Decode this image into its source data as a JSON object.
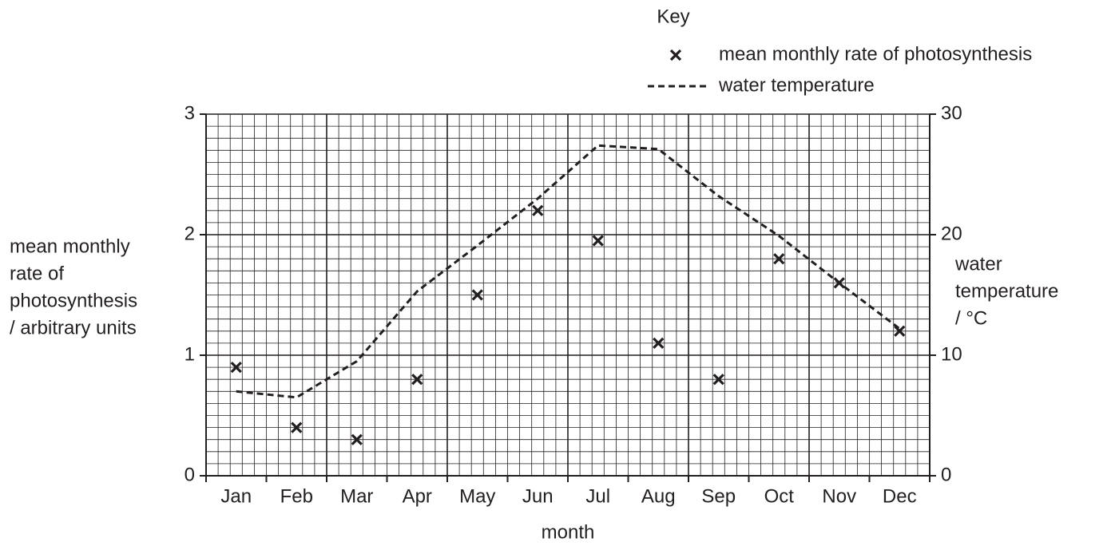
{
  "chart_data": {
    "type": "scatter",
    "legend_title": "Key",
    "xlabel": "month",
    "ylabel": [
      "mean monthly",
      "rate of",
      "photosynthesis",
      "/ arbitrary units"
    ],
    "y2label": [
      "water",
      "temperature",
      "/ °C"
    ],
    "categories": [
      "Jan",
      "Feb",
      "Mar",
      "Apr",
      "May",
      "Jun",
      "Jul",
      "Aug",
      "Sep",
      "Oct",
      "Nov",
      "Dec"
    ],
    "series": [
      {
        "name": "mean monthly rate of photosynthesis",
        "type": "scatter",
        "marker": "x",
        "color": "#231f20",
        "values": [
          0.9,
          0.4,
          0.3,
          0.8,
          1.5,
          2.2,
          1.95,
          1.1,
          0.8,
          1.8,
          1.6,
          1.2
        ]
      },
      {
        "name": "water temperature",
        "type": "line",
        "dashed": true,
        "axis": "y2",
        "color": "#231f20",
        "values": [
          7.0,
          6.5,
          9.5,
          15.3,
          19.1,
          23.0,
          27.4,
          27.1,
          23.2,
          19.9,
          16.0,
          12.2
        ]
      }
    ],
    "ylim": [
      0,
      3
    ],
    "yticks": [
      0,
      1,
      2,
      3
    ],
    "y2lim": [
      0,
      30
    ],
    "y2ticks": [
      0,
      10,
      20,
      30
    ],
    "grid": true
  }
}
